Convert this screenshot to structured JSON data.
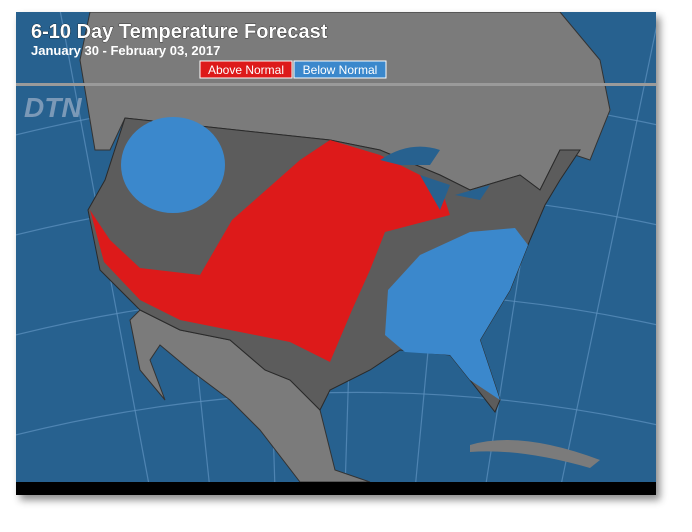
{
  "header": {
    "title": "6-10 Day Temperature Forecast",
    "subtitle": "January 30 - February 03, 2017"
  },
  "legend": [
    {
      "label": "Above Normal",
      "color": "#dd1a1a"
    },
    {
      "label": "Below Normal",
      "color": "#3b88cc"
    }
  ],
  "logo": "DTN"
}
